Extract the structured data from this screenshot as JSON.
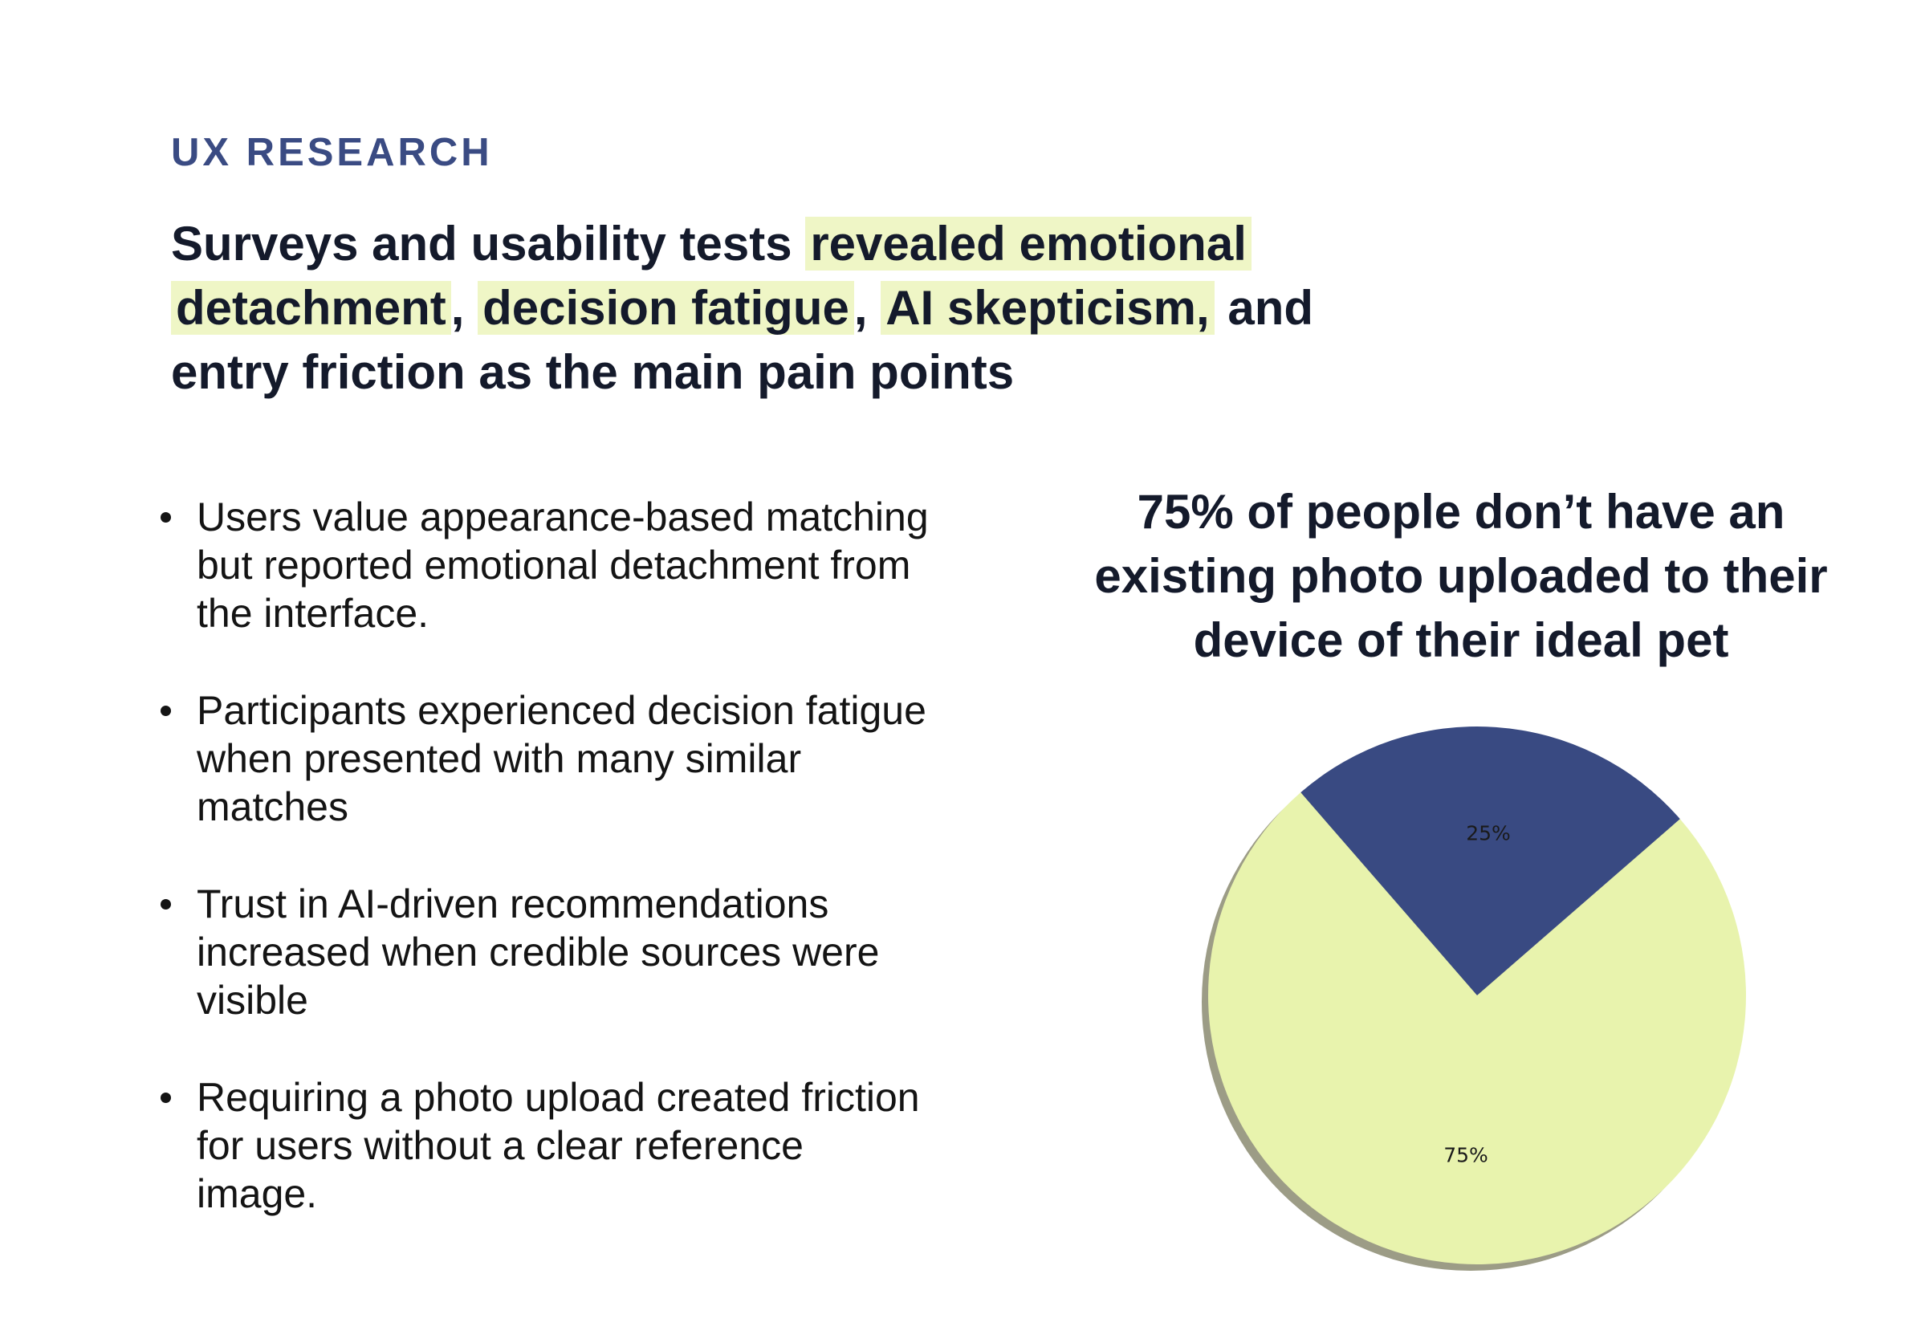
{
  "eyebrow": "UX RESEARCH",
  "headline": {
    "segments": [
      {
        "text": "Surveys and usability tests ",
        "highlight": false
      },
      {
        "text": "revealed emotional detachment",
        "highlight": true
      },
      {
        "text": ", ",
        "highlight": false
      },
      {
        "text": "decision fatigue",
        "highlight": true
      },
      {
        "text": ", ",
        "highlight": false
      },
      {
        "text": "AI skepticism,",
        "highlight": true
      },
      {
        "text": " and entry friction as the main pain points",
        "highlight": false
      }
    ]
  },
  "bullets": [
    "Users value appearance-based matching but reported emotional detachment from the interface.",
    "Participants experienced decision fatigue when presented with many similar matches",
    "Trust in AI-driven recommendations increased when credible sources were visible",
    "Requiring a photo upload created friction for users without a clear reference image."
  ],
  "colors": {
    "highlight": "#eff6c6",
    "accent": "#3a4b83",
    "pie_navy": "#394a82",
    "pie_lime": "#e8f3ad",
    "pie_shadow": "#9c9c86"
  },
  "chart_data": {
    "type": "pie",
    "title": "75% of people don’t have an existing photo uploaded to their device of their ideal pet",
    "slices": [
      {
        "value": 25,
        "label": "25%",
        "color": "#394a82"
      },
      {
        "value": 75,
        "label": "75%",
        "color": "#e8f3ad"
      }
    ],
    "shadow": true,
    "legend": "none"
  }
}
